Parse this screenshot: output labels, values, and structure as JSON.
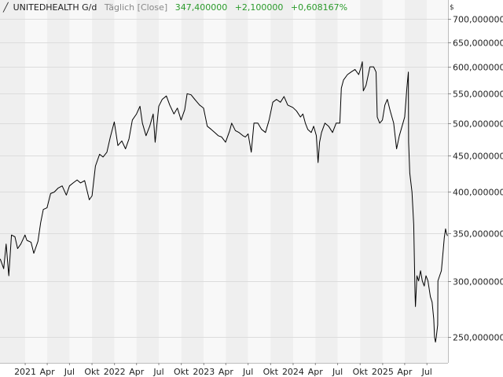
{
  "header": {
    "icon": "line-chart-icon",
    "symbol": "UNITEDHEALTH G/d",
    "mode": "Täglich [Close]",
    "last": "347,400000",
    "change": "+2,100000",
    "change_pct": "+0,608167%",
    "up_color": "#2a9a2a"
  },
  "currency": "$",
  "chart_data": {
    "type": "line",
    "title": "UNITEDHEALTH G/d",
    "xlabel": "",
    "ylabel": "",
    "yscale": "log",
    "ylim": [
      230,
      745
    ],
    "xlim": [
      "2020-09-20",
      "2025-09-25"
    ],
    "grid": true,
    "line_color": "#000000",
    "y_ticks": [
      {
        "value": 250,
        "label": "250,000000"
      },
      {
        "value": 300,
        "label": "300,000000"
      },
      {
        "value": 350,
        "label": "350,000000"
      },
      {
        "value": 400,
        "label": "400,000000"
      },
      {
        "value": 450,
        "label": "450,000000"
      },
      {
        "value": 500,
        "label": "500,000000"
      },
      {
        "value": 550,
        "label": "550,000000"
      },
      {
        "value": 600,
        "label": "600,000000"
      },
      {
        "value": 650,
        "label": "650,000000"
      },
      {
        "value": 700,
        "label": "700,000000"
      }
    ],
    "x_ticks": [
      {
        "date": "2021-01-01",
        "label": "2021"
      },
      {
        "date": "2021-04-01",
        "label": "Apr"
      },
      {
        "date": "2021-07-01",
        "label": "Jul"
      },
      {
        "date": "2021-10-01",
        "label": "Okt"
      },
      {
        "date": "2022-01-01",
        "label": "2022"
      },
      {
        "date": "2022-04-01",
        "label": "Apr"
      },
      {
        "date": "2022-07-01",
        "label": "Jul"
      },
      {
        "date": "2022-10-01",
        "label": "Okt"
      },
      {
        "date": "2023-01-01",
        "label": "2023"
      },
      {
        "date": "2023-04-01",
        "label": "Apr"
      },
      {
        "date": "2023-07-01",
        "label": "Jul"
      },
      {
        "date": "2023-10-01",
        "label": "Okt"
      },
      {
        "date": "2024-01-01",
        "label": "2024"
      },
      {
        "date": "2024-04-01",
        "label": "Apr"
      },
      {
        "date": "2024-07-01",
        "label": "Jul"
      },
      {
        "date": "2024-10-01",
        "label": "Okt"
      },
      {
        "date": "2025-01-01",
        "label": "2025"
      },
      {
        "date": "2025-04-01",
        "label": "Apr"
      },
      {
        "date": "2025-07-01",
        "label": "Jul"
      }
    ],
    "series": [
      {
        "points": [
          [
            "2020-09-21",
            322
          ],
          [
            "2020-10-05",
            312
          ],
          [
            "2020-10-15",
            338
          ],
          [
            "2020-10-26",
            305
          ],
          [
            "2020-11-06",
            348
          ],
          [
            "2020-11-20",
            346
          ],
          [
            "2020-12-01",
            333
          ],
          [
            "2020-12-14",
            338
          ],
          [
            "2020-12-31",
            348
          ],
          [
            "2021-01-08",
            342
          ],
          [
            "2021-01-25",
            340
          ],
          [
            "2021-02-05",
            328
          ],
          [
            "2021-02-22",
            341
          ],
          [
            "2021-03-05",
            362
          ],
          [
            "2021-03-16",
            378
          ],
          [
            "2021-03-31",
            380
          ],
          [
            "2021-04-15",
            398
          ],
          [
            "2021-04-30",
            400
          ],
          [
            "2021-05-15",
            405
          ],
          [
            "2021-06-01",
            408
          ],
          [
            "2021-06-18",
            396
          ],
          [
            "2021-07-01",
            408
          ],
          [
            "2021-07-16",
            412
          ],
          [
            "2021-08-01",
            416
          ],
          [
            "2021-08-15",
            412
          ],
          [
            "2021-09-01",
            415
          ],
          [
            "2021-09-20",
            390
          ],
          [
            "2021-10-01",
            395
          ],
          [
            "2021-10-15",
            435
          ],
          [
            "2021-11-01",
            452
          ],
          [
            "2021-11-15",
            448
          ],
          [
            "2021-12-01",
            455
          ],
          [
            "2021-12-15",
            478
          ],
          [
            "2021-12-31",
            502
          ],
          [
            "2022-01-15",
            465
          ],
          [
            "2022-01-31",
            472
          ],
          [
            "2022-02-15",
            460
          ],
          [
            "2022-03-01",
            475
          ],
          [
            "2022-03-15",
            505
          ],
          [
            "2022-04-01",
            515
          ],
          [
            "2022-04-15",
            528
          ],
          [
            "2022-04-25",
            500
          ],
          [
            "2022-05-10",
            480
          ],
          [
            "2022-05-25",
            495
          ],
          [
            "2022-06-08",
            515
          ],
          [
            "2022-06-16",
            470
          ],
          [
            "2022-07-01",
            528
          ],
          [
            "2022-07-15",
            540
          ],
          [
            "2022-08-01",
            546
          ],
          [
            "2022-08-15",
            530
          ],
          [
            "2022-09-01",
            515
          ],
          [
            "2022-09-15",
            525
          ],
          [
            "2022-09-30",
            505
          ],
          [
            "2022-10-15",
            522
          ],
          [
            "2022-10-25",
            550
          ],
          [
            "2022-11-10",
            548
          ],
          [
            "2022-11-25",
            540
          ],
          [
            "2022-12-15",
            530
          ],
          [
            "2022-12-31",
            525
          ],
          [
            "2023-01-15",
            495
          ],
          [
            "2023-01-31",
            490
          ],
          [
            "2023-02-15",
            485
          ],
          [
            "2023-03-01",
            480
          ],
          [
            "2023-03-15",
            478
          ],
          [
            "2023-03-31",
            470
          ],
          [
            "2023-04-17",
            488
          ],
          [
            "2023-04-25",
            500
          ],
          [
            "2023-05-10",
            488
          ],
          [
            "2023-05-25",
            485
          ],
          [
            "2023-06-10",
            480
          ],
          [
            "2023-06-20",
            478
          ],
          [
            "2023-07-01",
            483
          ],
          [
            "2023-07-14",
            455
          ],
          [
            "2023-07-25",
            500
          ],
          [
            "2023-08-10",
            500
          ],
          [
            "2023-08-25",
            490
          ],
          [
            "2023-09-10",
            485
          ],
          [
            "2023-09-25",
            505
          ],
          [
            "2023-10-10",
            535
          ],
          [
            "2023-10-25",
            540
          ],
          [
            "2023-11-10",
            535
          ],
          [
            "2023-11-25",
            545
          ],
          [
            "2023-12-10",
            530
          ],
          [
            "2023-12-31",
            526
          ],
          [
            "2024-01-15",
            520
          ],
          [
            "2024-01-31",
            510
          ],
          [
            "2024-02-10",
            515
          ],
          [
            "2024-02-20",
            500
          ],
          [
            "2024-03-01",
            490
          ],
          [
            "2024-03-15",
            485
          ],
          [
            "2024-03-25",
            495
          ],
          [
            "2024-04-05",
            480
          ],
          [
            "2024-04-12",
            440
          ],
          [
            "2024-04-18",
            470
          ],
          [
            "2024-04-26",
            485
          ],
          [
            "2024-05-10",
            500
          ],
          [
            "2024-05-25",
            495
          ],
          [
            "2024-06-10",
            485
          ],
          [
            "2024-06-25",
            500
          ],
          [
            "2024-07-10",
            500
          ],
          [
            "2024-07-16",
            560
          ],
          [
            "2024-07-25",
            575
          ],
          [
            "2024-08-10",
            585
          ],
          [
            "2024-08-25",
            590
          ],
          [
            "2024-09-10",
            595
          ],
          [
            "2024-09-25",
            585
          ],
          [
            "2024-10-05",
            600
          ],
          [
            "2024-10-10",
            610
          ],
          [
            "2024-10-14",
            555
          ],
          [
            "2024-10-25",
            565
          ],
          [
            "2024-11-10",
            600
          ],
          [
            "2024-11-25",
            600
          ],
          [
            "2024-12-05",
            590
          ],
          [
            "2024-12-10",
            510
          ],
          [
            "2024-12-20",
            500
          ],
          [
            "2024-12-31",
            505
          ],
          [
            "2025-01-10",
            530
          ],
          [
            "2025-01-20",
            540
          ],
          [
            "2025-02-01",
            520
          ],
          [
            "2025-02-15",
            500
          ],
          [
            "2025-02-27",
            460
          ],
          [
            "2025-03-10",
            480
          ],
          [
            "2025-03-25",
            500
          ],
          [
            "2025-04-01",
            510
          ],
          [
            "2025-04-10",
            560
          ],
          [
            "2025-04-16",
            590
          ],
          [
            "2025-04-17",
            470
          ],
          [
            "2025-04-22",
            425
          ],
          [
            "2025-05-01",
            400
          ],
          [
            "2025-05-08",
            360
          ],
          [
            "2025-05-13",
            290
          ],
          [
            "2025-05-15",
            276
          ],
          [
            "2025-05-21",
            305
          ],
          [
            "2025-05-28",
            300
          ],
          [
            "2025-06-05",
            310
          ],
          [
            "2025-06-12",
            300
          ],
          [
            "2025-06-20",
            295
          ],
          [
            "2025-06-27",
            305
          ],
          [
            "2025-07-05",
            300
          ],
          [
            "2025-07-15",
            285
          ],
          [
            "2025-07-22",
            280
          ],
          [
            "2025-07-29",
            265
          ],
          [
            "2025-08-01",
            250
          ],
          [
            "2025-08-05",
            246
          ],
          [
            "2025-08-08",
            250
          ],
          [
            "2025-08-14",
            260
          ],
          [
            "2025-08-15",
            300
          ],
          [
            "2025-08-22",
            305
          ],
          [
            "2025-08-29",
            310
          ],
          [
            "2025-09-05",
            330
          ],
          [
            "2025-09-10",
            345
          ],
          [
            "2025-09-15",
            355
          ],
          [
            "2025-09-19",
            350
          ],
          [
            "2025-09-23",
            347
          ]
        ]
      }
    ]
  }
}
